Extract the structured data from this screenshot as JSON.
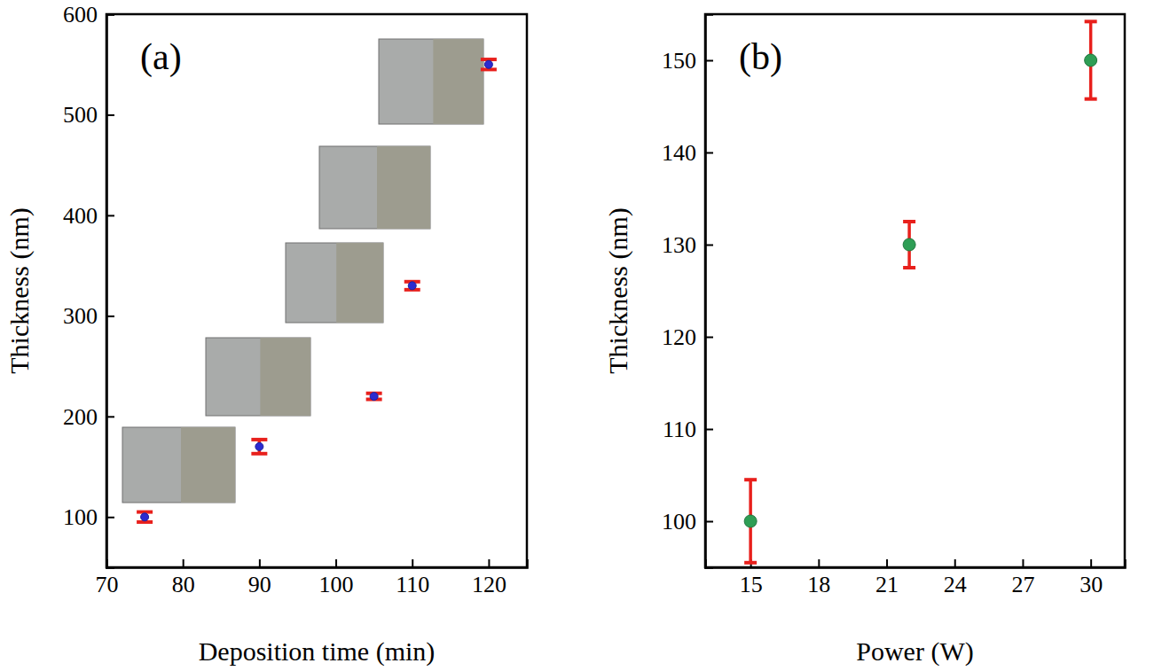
{
  "chart_data": [
    {
      "type": "scatter",
      "title": "(a)",
      "x_label": "Deposition time (min)",
      "y_label": "Thickness (nm)",
      "x": [
        75,
        90,
        105,
        110,
        120
      ],
      "y": [
        100,
        170,
        220,
        330,
        550
      ],
      "errors": [
        5,
        7,
        3,
        4,
        5
      ],
      "xlim": [
        70,
        125
      ],
      "ylim": [
        50,
        600
      ],
      "xticks": [
        70,
        80,
        90,
        100,
        110,
        120
      ],
      "yticks": [
        100,
        200,
        300,
        400,
        500,
        600
      ],
      "color": "#2b2bd0",
      "marker": "circle",
      "grid": false
    },
    {
      "type": "scatter",
      "title": "(b)",
      "x_label": "Power (W)",
      "y_label": "Thickness (nm)",
      "x": [
        15,
        22,
        30
      ],
      "y": [
        100,
        130,
        150
      ],
      "errors": [
        4.5,
        2.5,
        4.2
      ],
      "xlim": [
        13,
        31.5
      ],
      "ylim": [
        95,
        155
      ],
      "xticks": [
        15,
        18,
        21,
        24,
        27,
        30
      ],
      "yticks": [
        100,
        110,
        120,
        130,
        140,
        150
      ],
      "color": "#2e9e55",
      "marker": "circle",
      "grid": false
    }
  ]
}
